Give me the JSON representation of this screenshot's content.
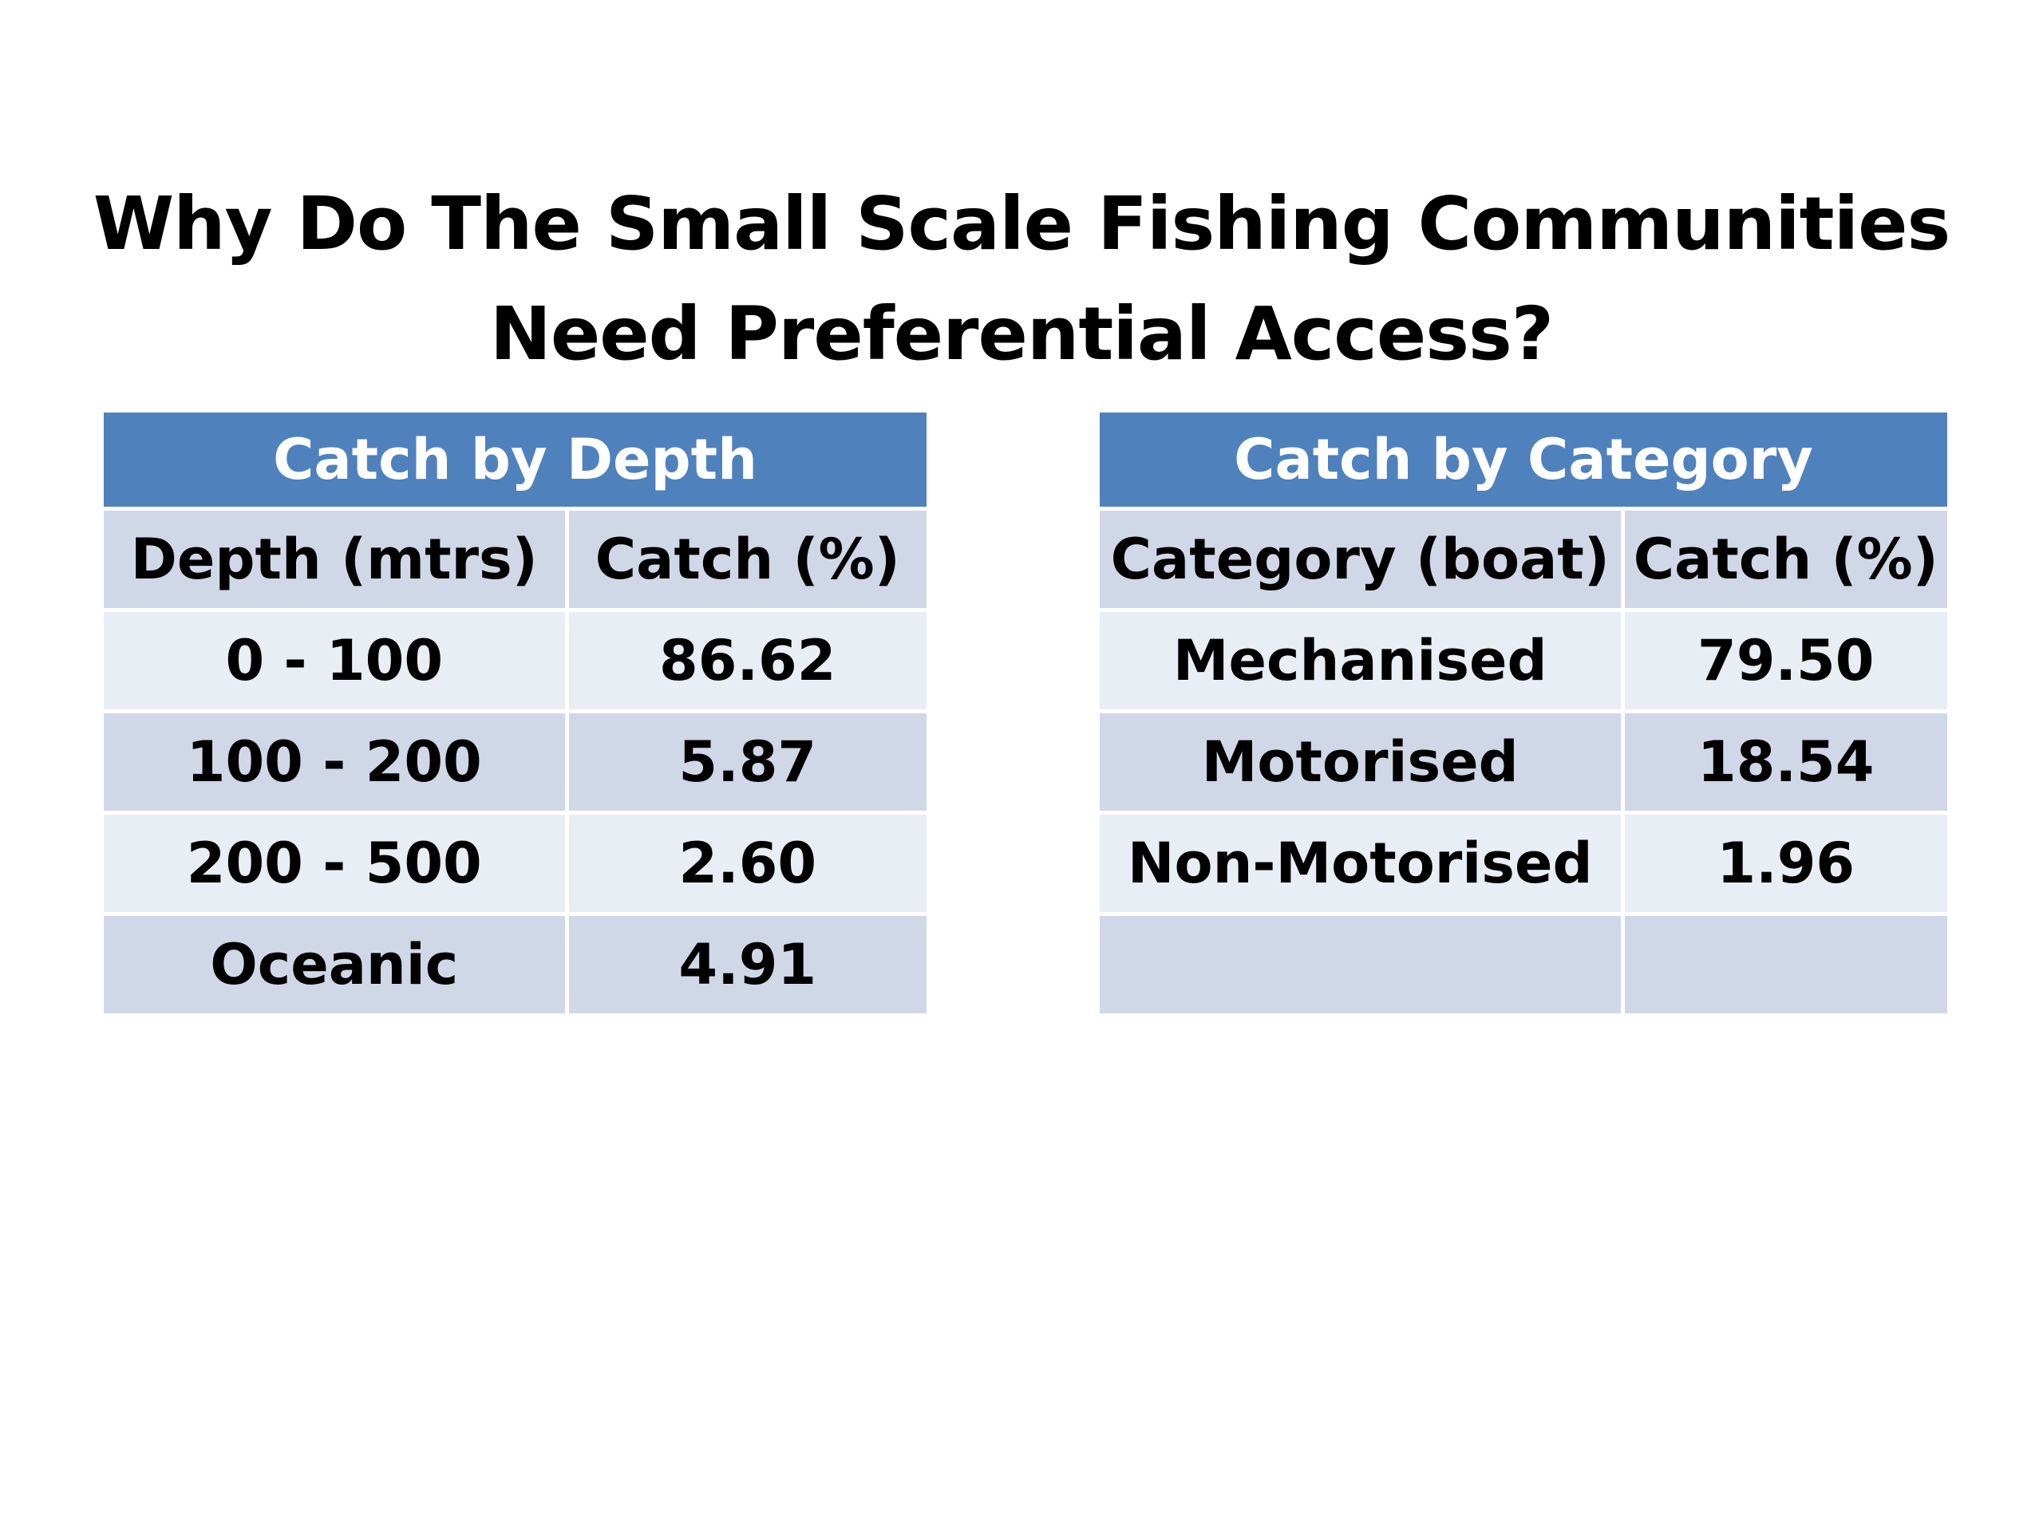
{
  "slide": {
    "title_line1": "Why Do The Small Scale Fishing Communities",
    "title_line2": "Need Preferential Access?"
  },
  "depth_table": {
    "title": "Catch by Depth",
    "columns": [
      "Depth (mtrs)",
      "Catch (%)"
    ],
    "rows": [
      [
        "0 - 100",
        "86.62"
      ],
      [
        "100 - 200",
        "5.87"
      ],
      [
        "200 - 500",
        "2.60"
      ],
      [
        "Oceanic",
        "4.91"
      ]
    ]
  },
  "category_table": {
    "title": "Catch by Category",
    "columns": [
      "Category (boat)",
      "Catch (%)"
    ],
    "rows": [
      [
        "Mechanised",
        "79.50"
      ],
      [
        "Motorised",
        "18.54"
      ],
      [
        "Non-Motorised",
        "1.96"
      ],
      [
        "",
        ""
      ]
    ]
  },
  "colors": {
    "header_blue": "#4f81bd",
    "row_dark": "#d0d8e8",
    "row_light": "#e9edf4"
  }
}
